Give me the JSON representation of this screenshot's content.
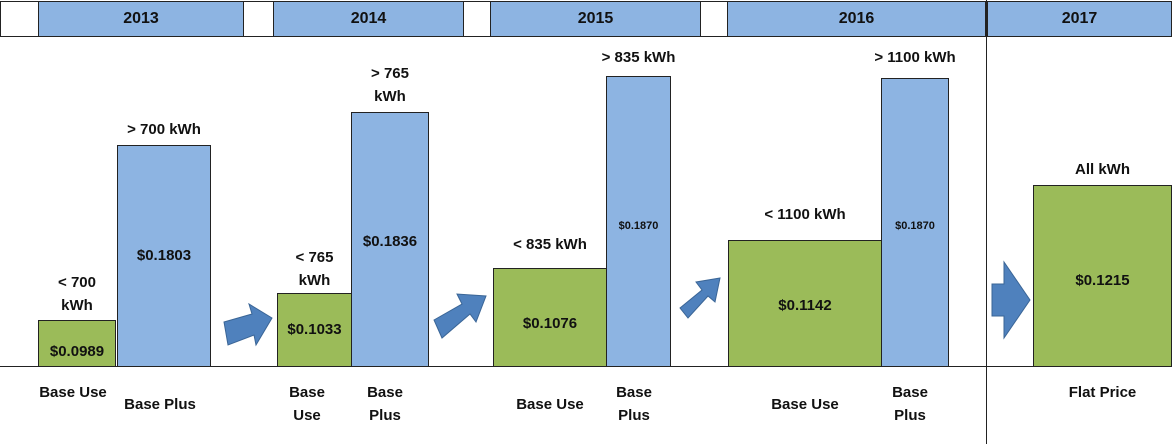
{
  "years": [
    {
      "year": "2013",
      "bars": [
        {
          "label": "< 700 kWh",
          "price": "$0.0989",
          "caption": "Base Use"
        },
        {
          "label": "> 700 kWh",
          "price": "$0.1803",
          "caption": "Base Plus"
        }
      ]
    },
    {
      "year": "2014",
      "bars": [
        {
          "label": "< 765 kWh",
          "price": "$0.1033",
          "caption": "Base Use"
        },
        {
          "label": "> 765 kWh",
          "price": "$0.1836",
          "caption": "Base Plus"
        }
      ]
    },
    {
      "year": "2015",
      "bars": [
        {
          "label": "< 835 kWh",
          "price": "$0.1076",
          "caption": "Base Use"
        },
        {
          "label": "> 835 kWh",
          "price": "$0.1870",
          "caption": "Base Plus"
        }
      ]
    },
    {
      "year": "2016",
      "bars": [
        {
          "label": "< 1100 kWh",
          "price": "$0.1142",
          "caption": "Base Use"
        },
        {
          "label": "> 1100 kWh",
          "price": "$0.1870",
          "caption": "Base Plus"
        }
      ]
    },
    {
      "year": "2017",
      "bars": [
        {
          "label": "All kWh",
          "price": "$0.1215",
          "caption": "Flat Price"
        }
      ]
    }
  ]
}
